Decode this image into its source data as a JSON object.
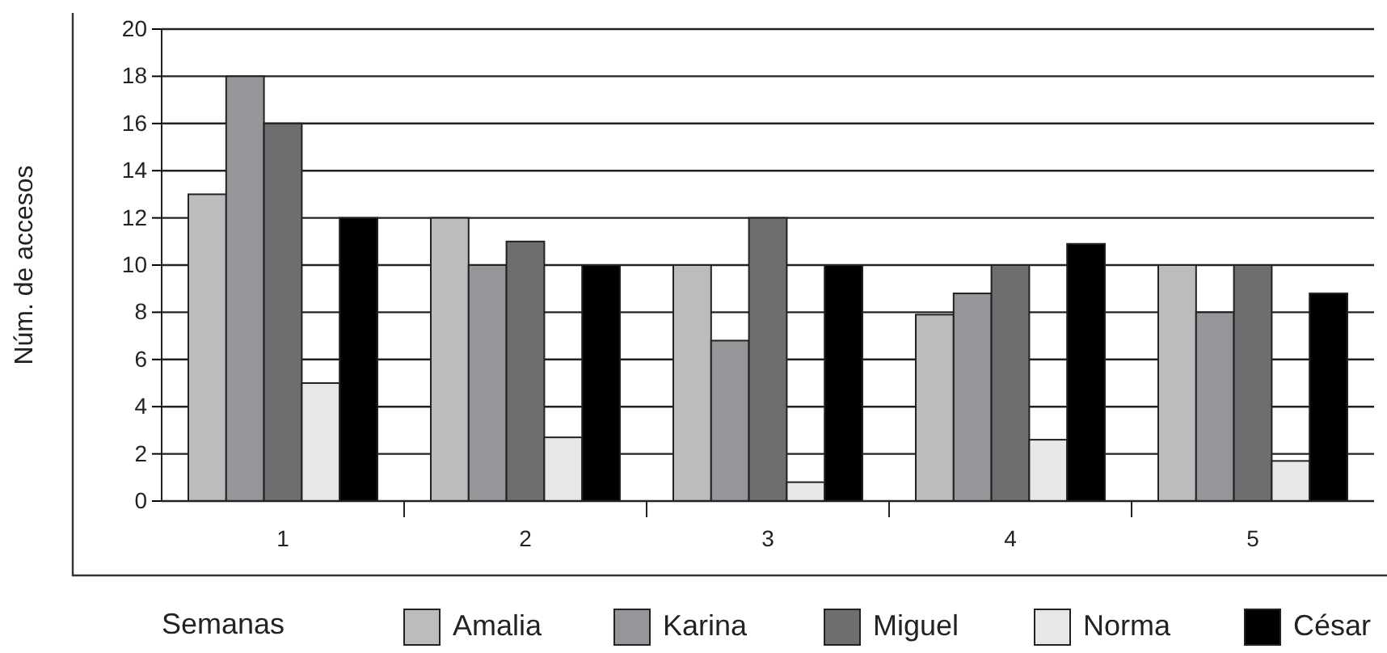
{
  "chart_data": {
    "type": "bar",
    "xlabel": "Semanas",
    "ylabel": "Núm. de accesos",
    "categories": [
      "1",
      "2",
      "3",
      "4",
      "5"
    ],
    "ylim": [
      0,
      20
    ],
    "yticks": [
      0,
      2,
      4,
      6,
      8,
      10,
      12,
      14,
      16,
      18,
      20
    ],
    "grid": "y",
    "legend": "bottom",
    "series": [
      {
        "name": "Amalia",
        "color": "#bbbcbe",
        "values": [
          13,
          12,
          10,
          7.9,
          10
        ]
      },
      {
        "name": "Karina",
        "color": "#959699",
        "values": [
          18,
          10,
          6.8,
          8.8,
          8
        ]
      },
      {
        "name": "Miguel",
        "color": "#6d6e70",
        "values": [
          16,
          11,
          12,
          10,
          10
        ]
      },
      {
        "name": "Norma",
        "color": "#e6e7e8",
        "values": [
          5,
          2.7,
          0.8,
          2.6,
          1.7
        ]
      },
      {
        "name": "César",
        "color": "#000000",
        "values": [
          12,
          10,
          10,
          10.9,
          8.8
        ]
      }
    ]
  }
}
